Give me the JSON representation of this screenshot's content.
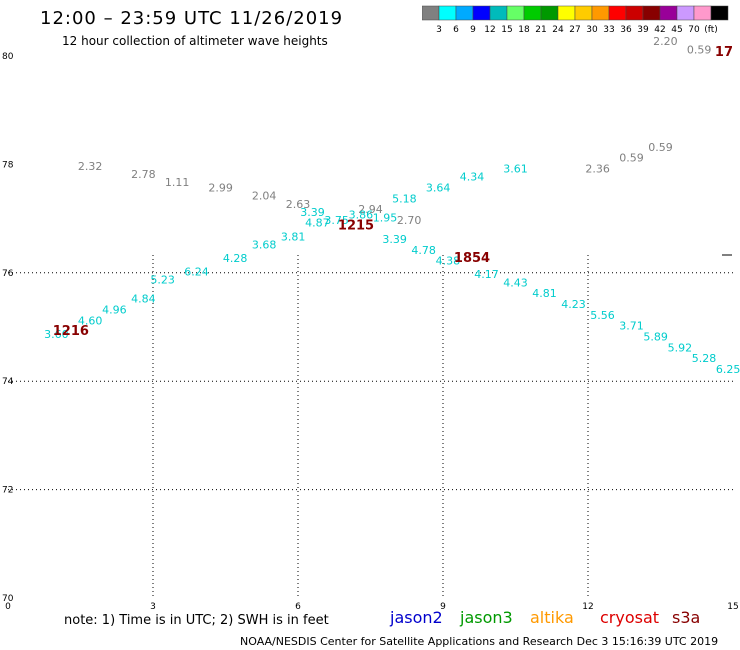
{
  "header": {
    "title": "12:00 – 23:59 UTC 11/26/2019",
    "subtitle": "12 hour collection of altimeter wave heights"
  },
  "legend": {
    "colors": [
      "#808080",
      "#00ffff",
      "#00aaff",
      "#0000ff",
      "#00bbbb",
      "#66ff66",
      "#00cc00",
      "#009900",
      "#ffff00",
      "#ffcc00",
      "#ff9900",
      "#ff0000",
      "#cc0000",
      "#880000",
      "#990099",
      "#cc99ff",
      "#ff99cc",
      "#000000"
    ],
    "labels": [
      "3",
      "6",
      "9",
      "12",
      "15",
      "18",
      "21",
      "24",
      "27",
      "30",
      "33",
      "36",
      "39",
      "42",
      "45",
      "70",
      "(ft)"
    ]
  },
  "footer": {
    "note": "note:  1) Time is in UTC;  2) SWH is in feet",
    "credit": "NOAA/NESDIS Center for Satellite Applications and Research    Dec  3 15:16:39 UTC 2019",
    "satellites": [
      {
        "name": "jason2",
        "color": "#0000cc"
      },
      {
        "name": "jason3",
        "color": "#009900"
      },
      {
        "name": "altika",
        "color": "#ff9900"
      },
      {
        "name": "cryosat",
        "color": "#dd0000"
      },
      {
        "name": "s3a",
        "color": "#880000"
      }
    ]
  },
  "chart_data": {
    "type": "scatter",
    "xlim": [
      0,
      15
    ],
    "ylim": [
      70,
      80
    ],
    "xticks": [
      0,
      3,
      6,
      9,
      12,
      15
    ],
    "yticks": [
      70,
      72,
      74,
      76,
      78,
      80
    ],
    "grid": true,
    "points": [
      {
        "x": 1.7,
        "y": 77.9,
        "label": "2.32",
        "color": "#808080"
      },
      {
        "x": 2.8,
        "y": 77.75,
        "label": "2.78",
        "color": "#808080"
      },
      {
        "x": 3.5,
        "y": 77.6,
        "label": "1.11",
        "color": "#808080"
      },
      {
        "x": 4.4,
        "y": 77.5,
        "label": "2.99",
        "color": "#808080"
      },
      {
        "x": 5.3,
        "y": 77.35,
        "label": "2.04",
        "color": "#808080"
      },
      {
        "x": 6.0,
        "y": 77.2,
        "label": "2.63",
        "color": "#808080"
      },
      {
        "x": 7.5,
        "y": 77.1,
        "label": "2.94",
        "color": "#808080"
      },
      {
        "x": 8.3,
        "y": 76.9,
        "label": "2.70",
        "color": "#808080"
      },
      {
        "x": 12.2,
        "y": 77.85,
        "label": "2.36",
        "color": "#808080"
      },
      {
        "x": 12.9,
        "y": 78.05,
        "label": "0.59",
        "color": "#808080"
      },
      {
        "x": 13.5,
        "y": 78.25,
        "label": "0.59",
        "color": "#808080"
      },
      {
        "x": 13.6,
        "y": 80.2,
        "label": "2.20",
        "color": "#808080"
      },
      {
        "x": 14.3,
        "y": 80.05,
        "label": "0.59",
        "color": "#808080"
      },
      {
        "x": 1.0,
        "y": 74.8,
        "label": "3.60",
        "color": "#00cccc"
      },
      {
        "x": 1.7,
        "y": 75.05,
        "label": "4.60",
        "color": "#00cccc"
      },
      {
        "x": 2.2,
        "y": 75.25,
        "label": "4.96",
        "color": "#00cccc"
      },
      {
        "x": 2.8,
        "y": 75.45,
        "label": "4.84",
        "color": "#00cccc"
      },
      {
        "x": 3.2,
        "y": 75.8,
        "label": "5.23",
        "color": "#00cccc"
      },
      {
        "x": 3.9,
        "y": 75.95,
        "label": "6.24",
        "color": "#00cccc"
      },
      {
        "x": 4.7,
        "y": 76.2,
        "label": "4.28",
        "color": "#00cccc"
      },
      {
        "x": 5.3,
        "y": 76.45,
        "label": "3.68",
        "color": "#00cccc"
      },
      {
        "x": 5.9,
        "y": 76.6,
        "label": "3.81",
        "color": "#00cccc"
      },
      {
        "x": 6.4,
        "y": 76.85,
        "label": "4.87",
        "color": "#00cccc"
      },
      {
        "x": 6.3,
        "y": 77.05,
        "label": "3.39",
        "color": "#00cccc"
      },
      {
        "x": 6.8,
        "y": 76.9,
        "label": "3.75",
        "color": "#00cccc"
      },
      {
        "x": 7.3,
        "y": 77.0,
        "label": "3.86",
        "color": "#00cccc"
      },
      {
        "x": 7.8,
        "y": 76.95,
        "label": "1.95",
        "color": "#00cccc"
      },
      {
        "x": 8.0,
        "y": 76.55,
        "label": "3.39",
        "color": "#00cccc"
      },
      {
        "x": 8.6,
        "y": 76.35,
        "label": "4.78",
        "color": "#00cccc"
      },
      {
        "x": 9.1,
        "y": 76.15,
        "label": "4.38",
        "color": "#00cccc"
      },
      {
        "x": 9.9,
        "y": 75.9,
        "label": "4.17",
        "color": "#00cccc"
      },
      {
        "x": 10.5,
        "y": 75.75,
        "label": "4.43",
        "color": "#00cccc"
      },
      {
        "x": 11.1,
        "y": 75.55,
        "label": "4.81",
        "color": "#00cccc"
      },
      {
        "x": 11.7,
        "y": 75.35,
        "label": "4.23",
        "color": "#00cccc"
      },
      {
        "x": 12.3,
        "y": 75.15,
        "label": "5.56",
        "color": "#00cccc"
      },
      {
        "x": 12.9,
        "y": 74.95,
        "label": "3.71",
        "color": "#00cccc"
      },
      {
        "x": 13.4,
        "y": 74.75,
        "label": "5.89",
        "color": "#00cccc"
      },
      {
        "x": 13.9,
        "y": 74.55,
        "label": "5.92",
        "color": "#00cccc"
      },
      {
        "x": 14.4,
        "y": 74.35,
        "label": "5.28",
        "color": "#00cccc"
      },
      {
        "x": 14.9,
        "y": 74.15,
        "label": "6.25",
        "color": "#00cccc"
      },
      {
        "x": 8.2,
        "y": 77.3,
        "label": "5.18",
        "color": "#00cccc"
      },
      {
        "x": 8.9,
        "y": 77.5,
        "label": "3.64",
        "color": "#00cccc"
      },
      {
        "x": 9.6,
        "y": 77.7,
        "label": "4.34",
        "color": "#00cccc"
      },
      {
        "x": 10.5,
        "y": 77.85,
        "label": "3.61",
        "color": "#00cccc"
      }
    ],
    "time_marks": [
      {
        "x": 1.3,
        "y": 74.85,
        "label": "1216",
        "color": "#880000"
      },
      {
        "x": 7.2,
        "y": 76.8,
        "label": "1215",
        "color": "#880000"
      },
      {
        "x": 9.6,
        "y": 76.2,
        "label": "1854",
        "color": "#880000"
      },
      {
        "x": 15.0,
        "y": 80.0,
        "label": "17",
        "color": "#880000"
      }
    ]
  }
}
